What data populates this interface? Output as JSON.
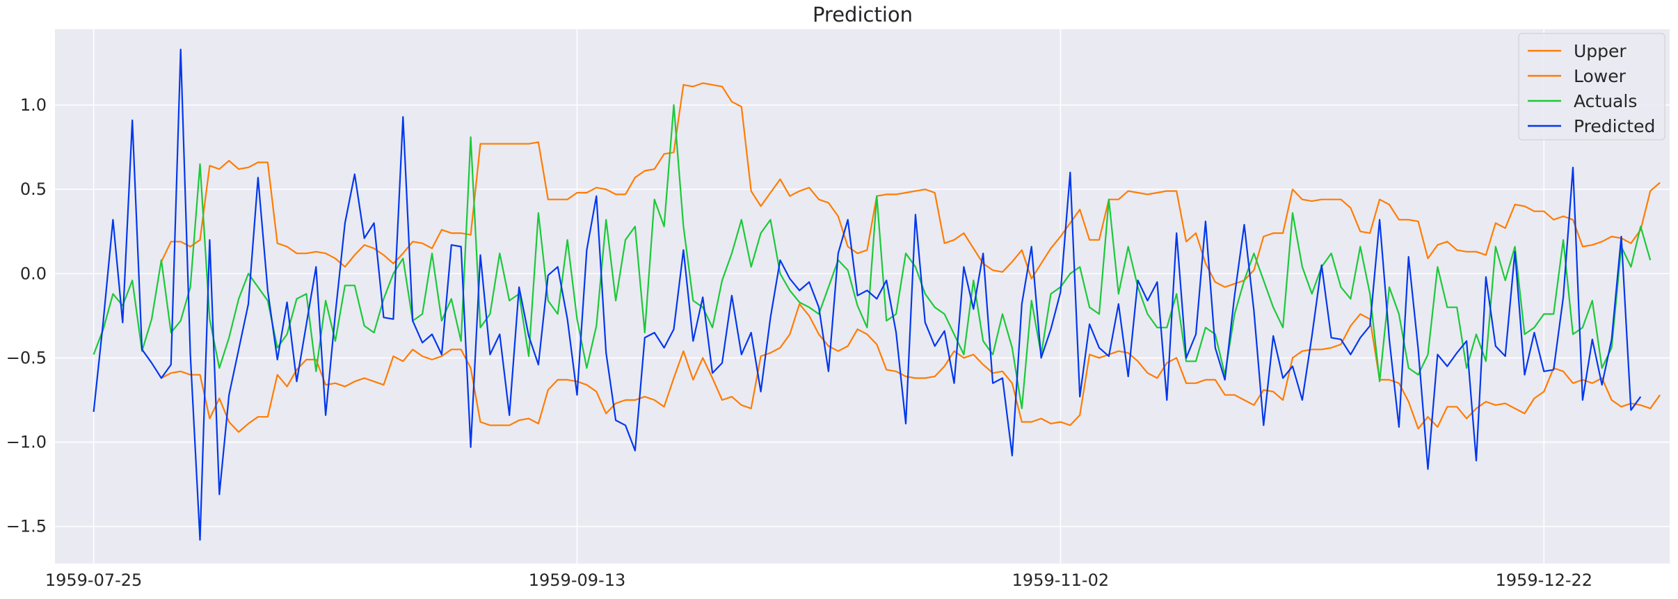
{
  "chart_data": {
    "type": "line",
    "title": "Prediction",
    "xlabel": "",
    "ylabel": "",
    "x_start": "1959-07-25",
    "x_end": "1959-12-31",
    "xlim": [
      "1959-07-21",
      "1960-01-04"
    ],
    "ylim": [
      -1.72,
      1.45
    ],
    "x_ticks": [
      "1959-07-25",
      "1959-09-13",
      "1959-11-02",
      "1959-12-22"
    ],
    "y_ticks": [
      -1.5,
      -1.0,
      -0.5,
      0.0,
      0.5,
      1.0
    ],
    "y_tick_labels": [
      "−1.5",
      "−1.0",
      "−0.5",
      "0.0",
      "0.5",
      "1.0"
    ],
    "grid": true,
    "legend_position": "top-right",
    "background": "#eaeaf2",
    "series": [
      {
        "name": "Upper",
        "color": "#ff7c00",
        "start": "1959-08-01",
        "values": [
          0.07,
          0.19,
          0.19,
          0.16,
          0.2,
          0.64,
          0.62,
          0.67,
          0.62,
          0.63,
          0.66,
          0.66,
          0.18,
          0.16,
          0.12,
          0.12,
          0.13,
          0.12,
          0.09,
          0.04,
          0.11,
          0.17,
          0.15,
          0.11,
          0.06,
          0.12,
          0.19,
          0.18,
          0.15,
          0.26,
          0.24,
          0.24,
          0.23,
          0.77,
          0.77,
          0.77,
          0.77,
          0.77,
          0.77,
          0.78,
          0.44,
          0.44,
          0.44,
          0.48,
          0.48,
          0.51,
          0.5,
          0.47,
          0.47,
          0.57,
          0.61,
          0.62,
          0.71,
          0.72,
          1.12,
          1.11,
          1.13,
          1.12,
          1.11,
          1.02,
          0.99,
          0.49,
          0.4,
          0.48,
          0.56,
          0.46,
          0.49,
          0.51,
          0.44,
          0.42,
          0.34,
          0.16,
          0.12,
          0.14,
          0.46,
          0.47,
          0.47,
          0.48,
          0.49,
          0.5,
          0.48,
          0.18,
          0.2,
          0.24,
          0.15,
          0.06,
          0.02,
          0.01,
          0.07,
          0.14,
          -0.03,
          0.06,
          0.15,
          0.22,
          0.3,
          0.38,
          0.2,
          0.2,
          0.44,
          0.44,
          0.49,
          0.48,
          0.47,
          0.48,
          0.49,
          0.49,
          0.19,
          0.24,
          0.06,
          -0.05,
          -0.08,
          -0.06,
          -0.04,
          0.02,
          0.22,
          0.24,
          0.24,
          0.5,
          0.44,
          0.43,
          0.44,
          0.44,
          0.44,
          0.39,
          0.25,
          0.24,
          0.44,
          0.41,
          0.32,
          0.32,
          0.31,
          0.09,
          0.17,
          0.19,
          0.14,
          0.13,
          0.13,
          0.11,
          0.3,
          0.27,
          0.41,
          0.4,
          0.37,
          0.37,
          0.32,
          0.34,
          0.32,
          0.16,
          0.17,
          0.19,
          0.22,
          0.21,
          0.18,
          0.26,
          0.49,
          0.54
        ]
      },
      {
        "name": "Lower",
        "color": "#ff7c00",
        "start": "1959-08-01",
        "values": [
          -0.62,
          -0.59,
          -0.58,
          -0.6,
          -0.6,
          -0.86,
          -0.74,
          -0.88,
          -0.94,
          -0.89,
          -0.85,
          -0.85,
          -0.6,
          -0.67,
          -0.57,
          -0.51,
          -0.51,
          -0.66,
          -0.65,
          -0.67,
          -0.64,
          -0.62,
          -0.64,
          -0.66,
          -0.49,
          -0.52,
          -0.45,
          -0.49,
          -0.51,
          -0.49,
          -0.45,
          -0.45,
          -0.56,
          -0.88,
          -0.9,
          -0.9,
          -0.9,
          -0.87,
          -0.86,
          -0.89,
          -0.69,
          -0.63,
          -0.63,
          -0.64,
          -0.66,
          -0.7,
          -0.83,
          -0.77,
          -0.75,
          -0.75,
          -0.73,
          -0.75,
          -0.79,
          -0.62,
          -0.46,
          -0.63,
          -0.5,
          -0.62,
          -0.75,
          -0.73,
          -0.78,
          -0.8,
          -0.49,
          -0.47,
          -0.44,
          -0.36,
          -0.18,
          -0.25,
          -0.36,
          -0.43,
          -0.46,
          -0.43,
          -0.33,
          -0.36,
          -0.42,
          -0.57,
          -0.58,
          -0.61,
          -0.62,
          -0.62,
          -0.61,
          -0.55,
          -0.46,
          -0.5,
          -0.48,
          -0.54,
          -0.59,
          -0.58,
          -0.65,
          -0.88,
          -0.88,
          -0.86,
          -0.89,
          -0.88,
          -0.9,
          -0.84,
          -0.48,
          -0.5,
          -0.48,
          -0.46,
          -0.47,
          -0.52,
          -0.59,
          -0.62,
          -0.53,
          -0.5,
          -0.65,
          -0.65,
          -0.63,
          -0.63,
          -0.72,
          -0.72,
          -0.75,
          -0.78,
          -0.69,
          -0.7,
          -0.75,
          -0.5,
          -0.46,
          -0.45,
          -0.45,
          -0.44,
          -0.42,
          -0.31,
          -0.24,
          -0.27,
          -0.63,
          -0.63,
          -0.65,
          -0.76,
          -0.92,
          -0.85,
          -0.91,
          -0.79,
          -0.79,
          -0.86,
          -0.8,
          -0.76,
          -0.78,
          -0.77,
          -0.8,
          -0.83,
          -0.74,
          -0.7,
          -0.56,
          -0.58,
          -0.65,
          -0.63,
          -0.65,
          -0.62,
          -0.75,
          -0.79,
          -0.77,
          -0.78,
          -0.8,
          -0.72
        ]
      },
      {
        "name": "Actuals",
        "color": "#1ac938",
        "start": "1959-07-25",
        "values": [
          -0.48,
          -0.33,
          -0.12,
          -0.19,
          -0.04,
          -0.46,
          -0.27,
          0.08,
          -0.35,
          -0.28,
          -0.08,
          0.65,
          -0.27,
          -0.56,
          -0.38,
          -0.15,
          0.0,
          -0.08,
          -0.16,
          -0.44,
          -0.36,
          -0.15,
          -0.12,
          -0.58,
          -0.16,
          -0.4,
          -0.07,
          -0.07,
          -0.31,
          -0.35,
          -0.15,
          0.0,
          0.09,
          -0.28,
          -0.24,
          0.12,
          -0.28,
          -0.15,
          -0.4,
          0.81,
          -0.32,
          -0.24,
          0.12,
          -0.16,
          -0.12,
          -0.49,
          0.36,
          -0.16,
          -0.24,
          0.2,
          -0.27,
          -0.56,
          -0.31,
          0.32,
          -0.16,
          0.2,
          0.28,
          -0.35,
          0.44,
          0.28,
          1.0,
          0.28,
          -0.16,
          -0.2,
          -0.32,
          -0.04,
          0.12,
          0.32,
          0.04,
          0.24,
          0.32,
          0.0,
          -0.1,
          -0.17,
          -0.2,
          -0.24,
          -0.08,
          0.08,
          0.02,
          -0.19,
          -0.32,
          0.46,
          -0.28,
          -0.24,
          0.12,
          0.04,
          -0.12,
          -0.2,
          -0.24,
          -0.36,
          -0.48,
          -0.04,
          -0.4,
          -0.48,
          -0.24,
          -0.44,
          -0.8,
          -0.16,
          -0.48,
          -0.12,
          -0.08,
          0.0,
          0.04,
          -0.2,
          -0.24,
          0.44,
          -0.12,
          0.16,
          -0.08,
          -0.24,
          -0.32,
          -0.32,
          -0.12,
          -0.52,
          -0.52,
          -0.32,
          -0.36,
          -0.6,
          -0.24,
          -0.04,
          0.12,
          -0.04,
          -0.2,
          -0.32,
          0.36,
          0.04,
          -0.12,
          0.04,
          0.12,
          -0.08,
          -0.15,
          0.16,
          -0.12,
          -0.64,
          -0.08,
          -0.24,
          -0.56,
          -0.6,
          -0.48,
          0.04,
          -0.2,
          -0.2,
          -0.56,
          -0.36,
          -0.52,
          0.16,
          -0.04,
          0.16,
          -0.36,
          -0.32,
          -0.24,
          -0.24,
          0.2,
          -0.36,
          -0.32,
          -0.16,
          -0.56,
          -0.44,
          0.16,
          0.04,
          0.28,
          0.08
        ]
      },
      {
        "name": "Predicted",
        "color": "#0037ee",
        "start": "1959-07-25",
        "values": [
          -0.82,
          -0.28,
          0.32,
          -0.29,
          0.91,
          -0.45,
          -0.53,
          -0.62,
          -0.54,
          1.33,
          -0.48,
          -1.58,
          0.2,
          -1.31,
          -0.72,
          -0.45,
          -0.18,
          0.57,
          -0.1,
          -0.51,
          -0.17,
          -0.64,
          -0.3,
          0.04,
          -0.84,
          -0.24,
          0.3,
          0.59,
          0.21,
          0.3,
          -0.26,
          -0.27,
          0.93,
          -0.28,
          -0.41,
          -0.36,
          -0.48,
          0.17,
          0.16,
          -1.03,
          0.11,
          -0.48,
          -0.36,
          -0.84,
          -0.08,
          -0.37,
          -0.54,
          -0.01,
          0.04,
          -0.27,
          -0.72,
          0.14,
          0.46,
          -0.47,
          -0.87,
          -0.9,
          -1.05,
          -0.38,
          -0.35,
          -0.44,
          -0.33,
          0.14,
          -0.4,
          -0.14,
          -0.59,
          -0.53,
          -0.13,
          -0.48,
          -0.35,
          -0.7,
          -0.26,
          0.08,
          -0.03,
          -0.1,
          -0.05,
          -0.2,
          -0.58,
          0.12,
          0.32,
          -0.13,
          -0.1,
          -0.15,
          -0.04,
          -0.35,
          -0.89,
          0.35,
          -0.29,
          -0.43,
          -0.34,
          -0.65,
          0.04,
          -0.21,
          0.12,
          -0.65,
          -0.62,
          -1.08,
          -0.18,
          0.16,
          -0.5,
          -0.33,
          -0.11,
          0.6,
          -0.73,
          -0.3,
          -0.44,
          -0.49,
          -0.18,
          -0.61,
          -0.04,
          -0.16,
          -0.05,
          -0.75,
          0.24,
          -0.5,
          -0.36,
          0.31,
          -0.44,
          -0.63,
          -0.13,
          0.29,
          -0.22,
          -0.9,
          -0.37,
          -0.62,
          -0.55,
          -0.75,
          -0.37,
          0.05,
          -0.38,
          -0.39,
          -0.48,
          -0.38,
          -0.31,
          0.32,
          -0.39,
          -0.91,
          0.1,
          -0.45,
          -1.16,
          -0.48,
          -0.55,
          -0.47,
          -0.4,
          -1.11,
          -0.02,
          -0.43,
          -0.49,
          0.13,
          -0.6,
          -0.35,
          -0.58,
          -0.57,
          -0.14,
          0.63,
          -0.75,
          -0.39,
          -0.66,
          -0.39,
          0.22,
          -0.81,
          -0.73
        ]
      }
    ]
  }
}
